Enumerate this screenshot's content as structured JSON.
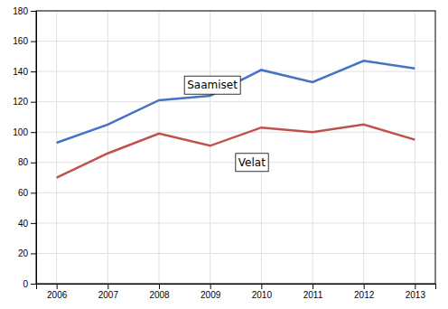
{
  "chart_data": {
    "type": "line",
    "x": [
      2006,
      2007,
      2008,
      2009,
      2010,
      2011,
      2012,
      2013
    ],
    "series": [
      {
        "color": "#4472C4",
        "values": [
          93,
          105,
          121,
          124,
          141,
          133,
          147,
          142
        ]
      },
      {
        "color": "#C0504D",
        "values": [
          70,
          86,
          99,
          91,
          103,
          100,
          105,
          95
        ]
      }
    ],
    "xlim": [
      2005.6,
      2013.4
    ],
    "xticks": [
      2006,
      2007,
      2008,
      2009,
      2010,
      2011,
      2012,
      2013
    ],
    "ylim": [
      0,
      180
    ],
    "yticks": [
      0,
      20,
      40,
      60,
      80,
      100,
      120,
      140,
      160,
      180
    ],
    "grid": true,
    "annotations": [
      {
        "text": "Saamiset",
        "x": 2008.55,
        "y": 131
      },
      {
        "text": "Velat",
        "x": 2009.55,
        "y": 80
      }
    ]
  }
}
